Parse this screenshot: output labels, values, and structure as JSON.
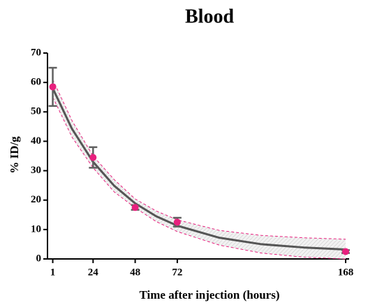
{
  "chart_data": {
    "type": "scatter",
    "title": "Blood",
    "x_label": "Time after injection (hours)",
    "y_label": "% ID/g",
    "xlim": [
      -2,
      170
    ],
    "ylim": [
      0,
      70
    ],
    "xticks": [
      1,
      24,
      48,
      72,
      168
    ],
    "yticks": [
      0,
      10,
      20,
      30,
      40,
      50,
      60,
      70
    ],
    "points": {
      "x": [
        1,
        24,
        48,
        72,
        168
      ],
      "values": [
        58.5,
        34.5,
        17.5,
        12.5,
        2.5
      ],
      "errors": [
        6.5,
        3.5,
        0.8,
        1.5,
        0.5
      ],
      "color": "#e8207e",
      "error_color": "#606060"
    },
    "fit": {
      "x": [
        1,
        12,
        24,
        36,
        48,
        60,
        72,
        96,
        120,
        144,
        168
      ],
      "values": [
        58.0,
        44.2,
        33.0,
        24.9,
        18.9,
        14.5,
        11.3,
        7.2,
        5.0,
        3.9,
        3.2
      ],
      "color": "#555555"
    },
    "band": {
      "x": [
        1,
        12,
        24,
        36,
        48,
        60,
        72,
        96,
        120,
        144,
        168
      ],
      "upper": [
        61.0,
        47.0,
        35.0,
        27.0,
        20.4,
        16.3,
        13.3,
        9.7,
        8.0,
        7.2,
        6.7
      ],
      "lower": [
        55.0,
        41.4,
        31.0,
        22.8,
        17.4,
        12.7,
        9.3,
        4.7,
        2.0,
        0.6,
        0.0
      ],
      "color": "#e8207e"
    }
  }
}
